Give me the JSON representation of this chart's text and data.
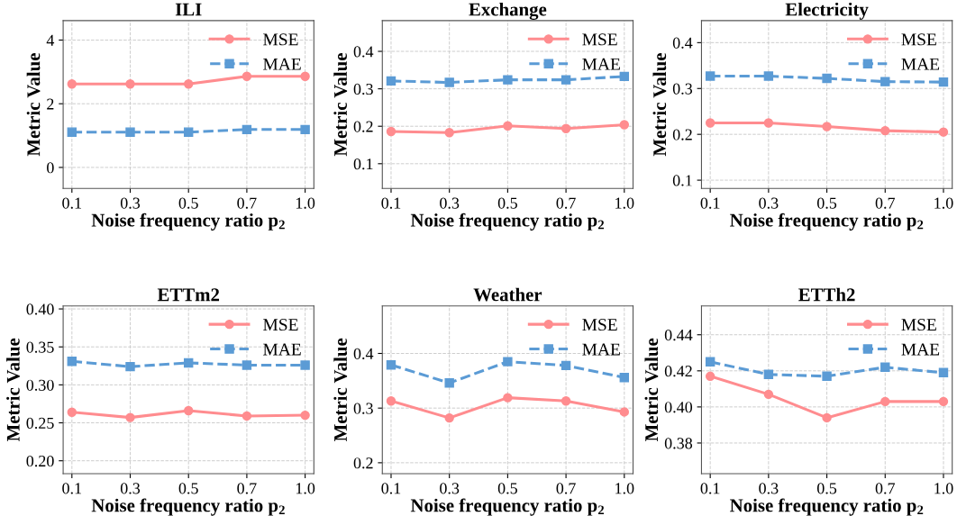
{
  "chart_data": [
    {
      "type": "line",
      "title": "ILI",
      "xlabel": "Noise frequency ratio p$_{2}$",
      "ylabel": "Metric Value",
      "categories": [
        "0.1",
        "0.3",
        "0.5",
        "0.7",
        "1.0"
      ],
      "ylim": [
        -0.66,
        4.61
      ],
      "yticks": [
        0,
        2,
        4
      ],
      "grid": true,
      "legend": "top right",
      "series": [
        {
          "name": "MSE",
          "color": "#ff8c8f",
          "marker": "circle",
          "line_style": "solid",
          "values": [
            2.62,
            2.62,
            2.62,
            2.86,
            2.86
          ]
        },
        {
          "name": "MAE",
          "color": "#5b9bd5",
          "marker": "square",
          "line_style": "dashed",
          "values": [
            1.11,
            1.11,
            1.11,
            1.19,
            1.19
          ]
        }
      ]
    },
    {
      "type": "line",
      "title": "Exchange",
      "xlabel": "Noise frequency ratio p$_{2}$",
      "ylabel": "Metric Value",
      "categories": [
        "0.1",
        "0.3",
        "0.5",
        "0.7",
        "1.0"
      ],
      "ylim": [
        0.034,
        0.482
      ],
      "yticks": [
        0.1,
        0.2,
        0.3,
        0.4
      ],
      "grid": true,
      "legend": "top right",
      "series": [
        {
          "name": "MSE",
          "color": "#ff8c8f",
          "marker": "circle",
          "line_style": "solid",
          "values": [
            0.186,
            0.183,
            0.201,
            0.194,
            0.204
          ]
        },
        {
          "name": "MAE",
          "color": "#5b9bd5",
          "marker": "square",
          "line_style": "dashed",
          "values": [
            0.321,
            0.317,
            0.324,
            0.324,
            0.333
          ]
        }
      ]
    },
    {
      "type": "line",
      "title": "Electricity",
      "xlabel": "Noise frequency ratio p$_{2}$",
      "ylabel": "Metric Value",
      "categories": [
        "0.1",
        "0.3",
        "0.5",
        "0.7",
        "1.0"
      ],
      "ylim": [
        0.082,
        0.448
      ],
      "yticks": [
        0.1,
        0.2,
        0.3,
        0.4
      ],
      "grid": true,
      "legend": "top right",
      "series": [
        {
          "name": "MSE",
          "color": "#ff8c8f",
          "marker": "circle",
          "line_style": "solid",
          "values": [
            0.225,
            0.225,
            0.217,
            0.208,
            0.205
          ]
        },
        {
          "name": "MAE",
          "color": "#5b9bd5",
          "marker": "square",
          "line_style": "dashed",
          "values": [
            0.327,
            0.327,
            0.322,
            0.315,
            0.314
          ]
        }
      ]
    },
    {
      "type": "line",
      "title": "ETTm2",
      "xlabel": "Noise frequency ratio p$_{2}$",
      "ylabel": "Metric Value",
      "categories": [
        "0.1",
        "0.3",
        "0.5",
        "0.7",
        "1.0"
      ],
      "ylim": [
        0.183,
        0.404
      ],
      "yticks": [
        {
          "value": 0.2,
          "label": "0.20"
        },
        {
          "value": 0.25,
          "label": "0.25"
        },
        {
          "value": 0.3,
          "label": "0.30"
        },
        {
          "value": 0.35,
          "label": "0.35"
        },
        {
          "value": 0.4,
          "label": "0.40"
        }
      ],
      "grid": true,
      "legend": "top right",
      "series": [
        {
          "name": "MSE",
          "color": "#ff8c8f",
          "marker": "circle",
          "line_style": "solid",
          "values": [
            0.264,
            0.257,
            0.266,
            0.259,
            0.26
          ]
        },
        {
          "name": "MAE",
          "color": "#5b9bd5",
          "marker": "square",
          "line_style": "dashed",
          "values": [
            0.331,
            0.324,
            0.329,
            0.326,
            0.326
          ]
        }
      ]
    },
    {
      "type": "line",
      "title": "Weather",
      "xlabel": "Noise frequency ratio p$_{2}$",
      "ylabel": "Metric Value",
      "categories": [
        "0.1",
        "0.3",
        "0.5",
        "0.7",
        "1.0"
      ],
      "ylim": [
        0.18,
        0.487
      ],
      "yticks": [
        0.2,
        0.3,
        0.4
      ],
      "grid": true,
      "legend": "top right",
      "series": [
        {
          "name": "MSE",
          "color": "#ff8c8f",
          "marker": "circle",
          "line_style": "solid",
          "values": [
            0.313,
            0.282,
            0.319,
            0.313,
            0.293
          ]
        },
        {
          "name": "MAE",
          "color": "#5b9bd5",
          "marker": "square",
          "line_style": "dashed",
          "values": [
            0.379,
            0.346,
            0.385,
            0.378,
            0.356
          ]
        }
      ]
    },
    {
      "type": "line",
      "title": "ETTh2",
      "xlabel": "Noise frequency ratio p$_{2}$",
      "ylabel": "Metric Value",
      "categories": [
        "0.1",
        "0.3",
        "0.5",
        "0.7",
        "1.0"
      ],
      "ylim": [
        0.363,
        0.456
      ],
      "yticks": [
        {
          "value": 0.38,
          "label": "0.38"
        },
        {
          "value": 0.4,
          "label": "0.40"
        },
        {
          "value": 0.42,
          "label": "0.42"
        },
        {
          "value": 0.44,
          "label": "0.44"
        }
      ],
      "grid": true,
      "legend": "top right",
      "series": [
        {
          "name": "MSE",
          "color": "#ff8c8f",
          "marker": "circle",
          "line_style": "solid",
          "values": [
            0.417,
            0.407,
            0.394,
            0.403,
            0.403
          ]
        },
        {
          "name": "MAE",
          "color": "#5b9bd5",
          "marker": "square",
          "line_style": "dashed",
          "values": [
            0.425,
            0.418,
            0.417,
            0.422,
            0.419
          ]
        }
      ]
    }
  ]
}
